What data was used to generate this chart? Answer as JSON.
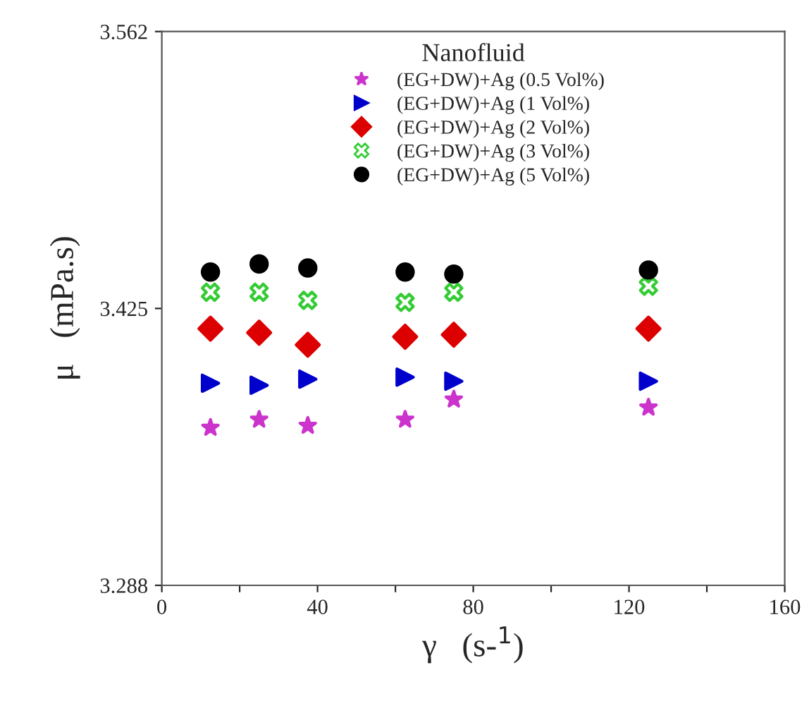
{
  "chart_data": {
    "type": "scatter",
    "xlabel": "γ   (s-$^{1}$)",
    "ylabel": "μ   (mPa.s)",
    "legend_title": "Nanofluid",
    "legend": "top",
    "x": [
      12.5,
      25,
      37.5,
      62.5,
      75,
      125
    ],
    "xlim": [
      0,
      160
    ],
    "xticks": [
      0,
      {
        "value": 20,
        "label": null
      },
      40,
      {
        "value": 60,
        "label": null
      },
      80,
      {
        "value": 100,
        "label": null
      },
      120,
      {
        "value": 140,
        "label": null
      },
      160
    ],
    "ylim": [
      3.288,
      3.562
    ],
    "yticks": [
      {
        "value": 3.288,
        "label": "3.288"
      },
      {
        "value": 3.425,
        "label": "3.425"
      },
      {
        "value": 3.562,
        "label": "3.562"
      }
    ],
    "grid": false,
    "series": [
      {
        "name": "(EG+DW)+Ag (0.5 Vol%)",
        "color": "#cc33cc",
        "marker": "star",
        "values": [
          3.366,
          3.37,
          3.367,
          3.37,
          3.38,
          3.376
        ]
      },
      {
        "name": "(EG+DW)+Ag (1 Vol%)",
        "color": "#0000cc",
        "marker": "triangle",
        "values": [
          3.388,
          3.387,
          3.39,
          3.391,
          3.389,
          3.389
        ]
      },
      {
        "name": "(EG+DW)+Ag (2 Vol%)",
        "color": "#dd0000",
        "marker": "diamond",
        "values": [
          3.415,
          3.413,
          3.407,
          3.411,
          3.412,
          3.415
        ]
      },
      {
        "name": "(EG+DW)+Ag (3 Vol%)",
        "color": "#33cc33",
        "marker": "cross",
        "values": [
          3.433,
          3.433,
          3.429,
          3.428,
          3.433,
          3.436
        ]
      },
      {
        "name": "(EG+DW)+Ag (5 Vol%)",
        "color": "#000000",
        "marker": "circle",
        "values": [
          3.443,
          3.447,
          3.445,
          3.443,
          3.442,
          3.444
        ]
      }
    ]
  }
}
